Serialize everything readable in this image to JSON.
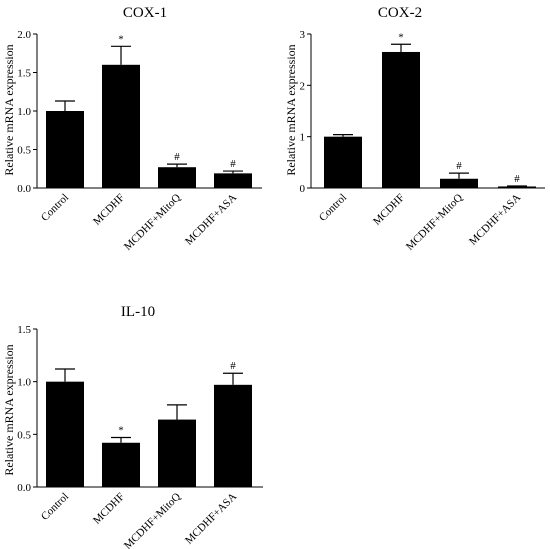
{
  "colors": {
    "bar": "#000000",
    "axis": "#000000",
    "background": "#ffffff"
  },
  "chart_data": [
    {
      "type": "bar",
      "title": "COX-1",
      "xlabel": "",
      "ylabel": "Relative mRNA expression",
      "ylim": [
        0,
        2.0
      ],
      "yticks": [
        0,
        0.5,
        1.0,
        1.5,
        2.0
      ],
      "ytick_labels": [
        "0.0",
        "0.5",
        "1.0",
        "1.5",
        "2.0"
      ],
      "categories": [
        "Control",
        "MCDHF",
        "MCDHF+MitoQ",
        "MCDHF+ASA"
      ],
      "values": [
        1.0,
        1.6,
        0.27,
        0.19
      ],
      "errors": [
        0.13,
        0.24,
        0.04,
        0.03
      ],
      "annotations": [
        "",
        "*",
        "#",
        "#"
      ],
      "grid": false,
      "legend": "none"
    },
    {
      "type": "bar",
      "title": "COX-2",
      "xlabel": "",
      "ylabel": "Relative mRNA expression",
      "ylim": [
        0,
        3
      ],
      "yticks": [
        0,
        1,
        2,
        3
      ],
      "ytick_labels": [
        "0",
        "1",
        "2",
        "3"
      ],
      "categories": [
        "Control",
        "MCDHF",
        "MCDHF+MitoQ",
        "MCDHF+ASA"
      ],
      "values": [
        1.0,
        2.65,
        0.18,
        0.03
      ],
      "errors": [
        0.04,
        0.15,
        0.11,
        0.01
      ],
      "annotations": [
        "",
        "*",
        "#",
        "#"
      ],
      "grid": false,
      "legend": "none"
    },
    {
      "type": "bar",
      "title": "IL-10",
      "xlabel": "",
      "ylabel": "Relative mRNA expression",
      "ylim": [
        0,
        1.5
      ],
      "yticks": [
        0,
        0.5,
        1.0,
        1.5
      ],
      "ytick_labels": [
        "0.0",
        "0.5",
        "1.0",
        "1.5"
      ],
      "categories": [
        "Control",
        "MCDHF",
        "MCDHF+MitoQ",
        "MCDHF+ASA"
      ],
      "values": [
        1.0,
        0.42,
        0.64,
        0.97
      ],
      "errors": [
        0.12,
        0.05,
        0.14,
        0.11
      ],
      "annotations": [
        "",
        "*",
        "",
        "#"
      ],
      "grid": false,
      "legend": "none"
    }
  ]
}
